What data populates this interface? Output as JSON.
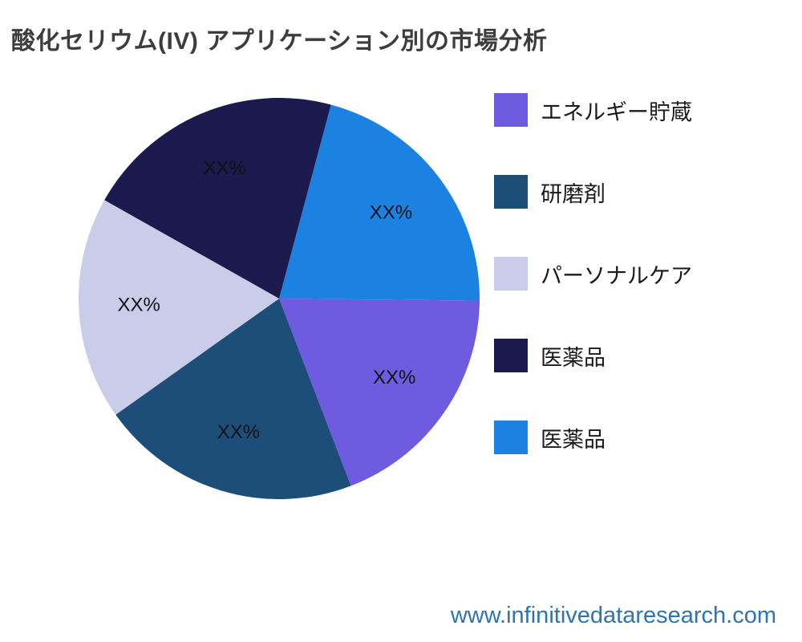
{
  "title": "酸化セリウム(IV) アプリケーション別の市場分析",
  "footer": {
    "website": "www.infinitivedataresearch.com"
  },
  "chart_data": {
    "type": "pie",
    "title": "酸化セリウム(IV) アプリケーション別の市場分析",
    "start_angle_deg": 15,
    "legend_position": "right",
    "slices": [
      {
        "label": "医薬品",
        "color": "#1b82e2",
        "value_pct": 21,
        "data_label": "XX%"
      },
      {
        "label": "エネルギー貯蔵",
        "color": "#6f5be0",
        "value_pct": 19,
        "data_label": "XX%"
      },
      {
        "label": "研磨剤",
        "color": "#1d4e79",
        "value_pct": 21,
        "data_label": "XX%"
      },
      {
        "label": "パーソナルケア",
        "color": "#c9cde9",
        "value_pct": 18,
        "data_label": "XX%"
      },
      {
        "label": "医薬品",
        "color": "#1a1a4f",
        "value_pct": 21,
        "data_label": "XX%"
      }
    ],
    "legend": [
      {
        "label": "エネルギー貯蔵",
        "color": "#6f5be0"
      },
      {
        "label": "研磨剤",
        "color": "#1d4e79"
      },
      {
        "label": "パーソナルケア",
        "color": "#c9cde9"
      },
      {
        "label": "医薬品",
        "color": "#1a1a4f"
      },
      {
        "label": "医薬品",
        "color": "#1b82e2"
      }
    ]
  }
}
